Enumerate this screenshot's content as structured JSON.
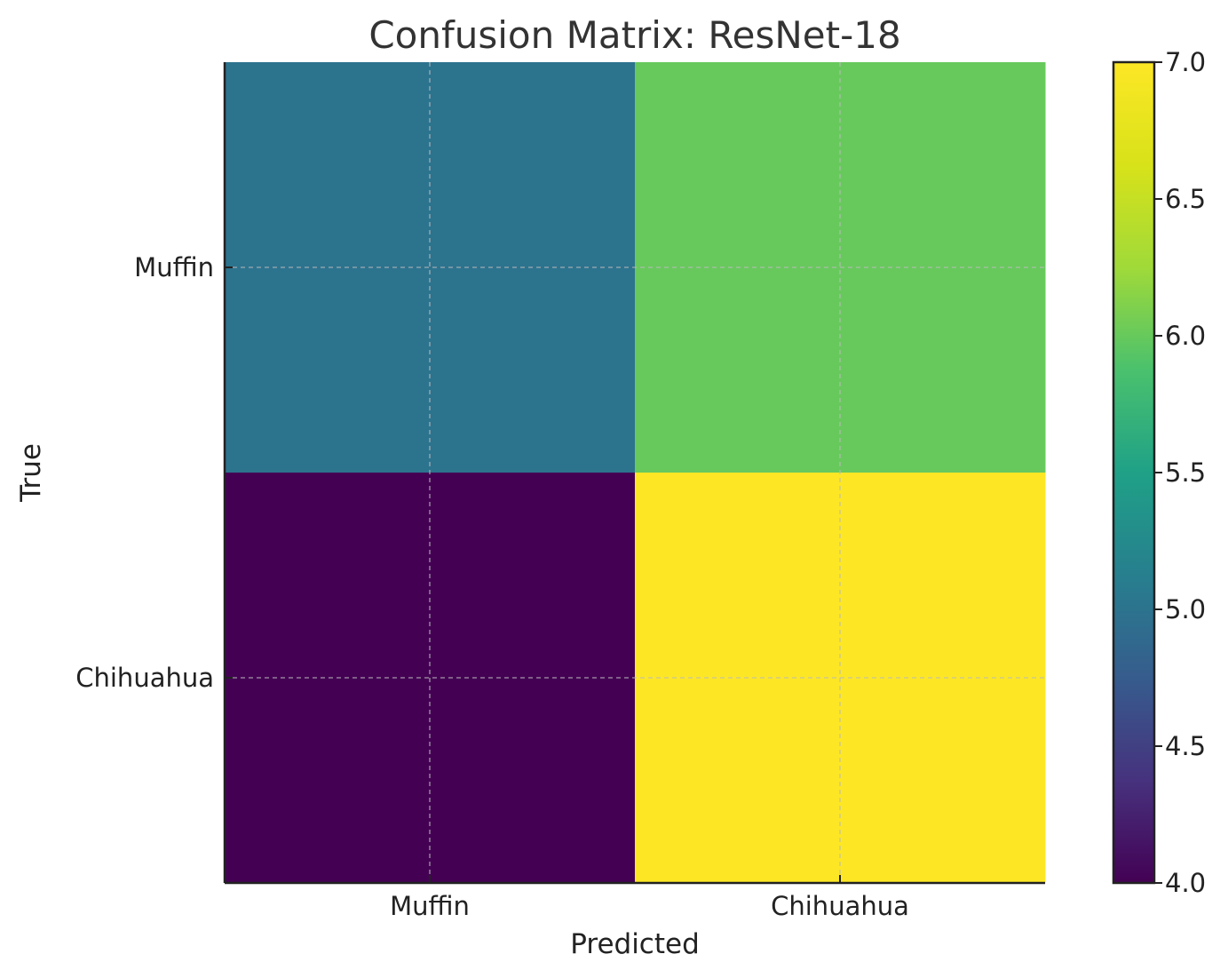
{
  "chart_data": {
    "type": "heatmap",
    "title": "Confusion Matrix: ResNet-18",
    "xlabel": "Predicted",
    "ylabel": "True",
    "x_categories": [
      "Muffin",
      "Chihuahua"
    ],
    "y_categories": [
      "Muffin",
      "Chihuahua"
    ],
    "values": [
      [
        5,
        6
      ],
      [
        4,
        7
      ]
    ],
    "colorbar": {
      "min": 4.0,
      "max": 7.0,
      "ticks": [
        "4.0",
        "4.5",
        "5.0",
        "5.5",
        "6.0",
        "6.5",
        "7.0"
      ],
      "colormap": "viridis"
    },
    "grid": true
  }
}
